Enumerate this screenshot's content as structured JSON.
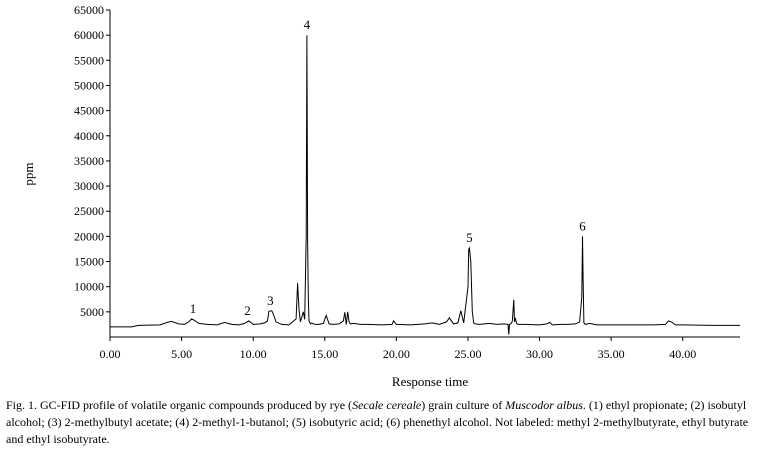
{
  "chart_data": {
    "type": "line",
    "xlabel": "Response time",
    "ylabel": "ppm",
    "xlim": [
      0,
      44
    ],
    "ylim": [
      0,
      65000
    ],
    "x_ticks": [
      0,
      5,
      10,
      15,
      20,
      25,
      30,
      35,
      40
    ],
    "x_tick_labels": [
      "0.00",
      "5.00",
      "10.00",
      "15.00",
      "20.00",
      "25.00",
      "30.00",
      "35.00",
      "40.00"
    ],
    "y_ticks": [
      5000,
      10000,
      15000,
      20000,
      25000,
      30000,
      35000,
      40000,
      45000,
      50000,
      55000,
      60000,
      65000
    ],
    "y_tick_labels": [
      "5000",
      "10000",
      "15000",
      "20000",
      "25000",
      "30000",
      "35000",
      "40000",
      "45000",
      "50000",
      "55000",
      "60000",
      "65000"
    ],
    "grid": false,
    "line_color": "#000000",
    "series": [
      {
        "x": [
          0.0,
          1.5,
          2.0,
          3.5,
          4.0,
          4.3,
          4.8,
          5.2,
          5.5,
          5.7,
          5.9,
          6.2,
          6.8,
          7.5,
          8.0,
          8.5,
          9.0,
          9.4,
          9.7,
          10.0,
          10.5,
          10.8,
          11.0,
          11.1,
          11.3,
          11.4,
          11.6,
          12.0,
          12.5,
          13.0,
          13.1,
          13.2,
          13.3,
          13.5,
          13.6,
          13.7,
          13.75,
          13.8,
          13.85,
          13.9,
          14.0,
          14.1,
          14.3,
          14.6,
          14.9,
          15.1,
          15.3,
          15.6,
          16.0,
          16.3,
          16.4,
          16.5,
          16.6,
          16.7,
          16.8,
          17.0,
          17.5,
          18.0,
          19.0,
          19.7,
          19.8,
          20.0,
          21.0,
          22.0,
          22.5,
          23.0,
          23.5,
          23.7,
          24.0,
          24.3,
          24.5,
          24.7,
          25.0,
          25.05,
          25.1,
          25.2,
          25.3,
          25.4,
          25.5,
          25.8,
          26.5,
          27.0,
          27.5,
          27.8,
          27.85,
          27.9,
          28.0,
          28.1,
          28.2,
          28.25,
          28.3,
          28.4,
          28.5,
          29.0,
          30.0,
          30.5,
          30.7,
          30.9,
          31.5,
          32.0,
          32.5,
          32.8,
          32.95,
          33.0,
          33.05,
          33.1,
          33.2,
          33.5,
          34.0,
          35.0,
          36.0,
          37.0,
          38.0,
          38.8,
          39.0,
          39.2,
          39.5,
          40.0,
          42.0,
          44.0
        ],
        "y": [
          2000,
          2000,
          2300,
          2400,
          2900,
          3100,
          2600,
          2500,
          3000,
          3600,
          3300,
          2700,
          2500,
          2400,
          2900,
          2500,
          2400,
          2700,
          3200,
          2500,
          2600,
          2800,
          3200,
          5100,
          5200,
          4600,
          3000,
          2500,
          2400,
          3600,
          10700,
          5500,
          3000,
          5000,
          3500,
          20000,
          60000,
          19500,
          8000,
          3200,
          2600,
          2800,
          2500,
          2500,
          2700,
          4300,
          2600,
          2500,
          2600,
          3200,
          4900,
          2500,
          5000,
          3000,
          2600,
          2700,
          2500,
          2500,
          2400,
          2500,
          3200,
          2500,
          2400,
          2600,
          2800,
          2500,
          3000,
          3800,
          2600,
          2800,
          5200,
          2800,
          10000,
          17400,
          17700,
          15000,
          5000,
          2800,
          2600,
          2500,
          2700,
          2500,
          2600,
          2500,
          500,
          2500,
          2600,
          3100,
          7400,
          3000,
          3800,
          2700,
          2500,
          2500,
          2400,
          2600,
          2900,
          2400,
          2500,
          2500,
          2600,
          3000,
          8000,
          20000,
          10500,
          2800,
          2500,
          2700,
          2400,
          2400,
          2400,
          2400,
          2400,
          2500,
          3200,
          3000,
          2400,
          2400,
          2300,
          2300
        ]
      }
    ],
    "annotations": [
      {
        "label": "1",
        "x": 5.8,
        "y": 3600
      },
      {
        "label": "2",
        "x": 9.6,
        "y": 3200
      },
      {
        "label": "3",
        "x": 11.2,
        "y": 5200
      },
      {
        "label": "4",
        "x": 13.75,
        "y": 60000
      },
      {
        "label": "5",
        "x": 25.1,
        "y": 17700
      },
      {
        "label": "6",
        "x": 33.0,
        "y": 20000
      }
    ]
  },
  "caption": {
    "fig_label": "Fig. 1.",
    "seg1": "GC-FID profile of volatile organic compounds produced by rye (",
    "italic1": "Secale cereale",
    "seg2": ") grain culture of ",
    "italic2": "Muscodor albus",
    "seg3": ". (1) ethyl propionate; (2) isobutyl alcohol; (3) 2-methylbutyl acetate; (4) 2-methyl-1-butanol; (5) isobutyric acid; (6) phenethyl alcohol. Not labeled: methyl 2-methylbutyrate, ethyl butyrate and ethyl isobutyrate."
  }
}
